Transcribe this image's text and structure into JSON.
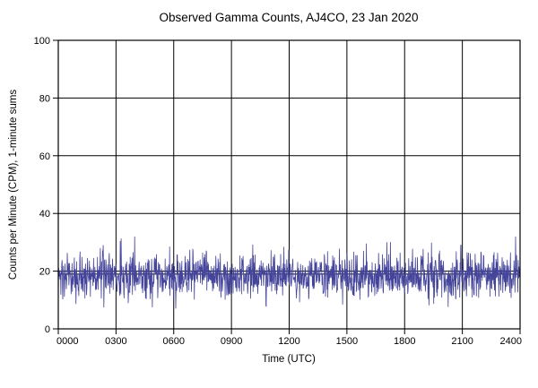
{
  "page": {
    "background": "#ffffff"
  },
  "chart_data": {
    "type": "line",
    "title": "Observed Gamma Counts, AJ4CO, 23 Jan 2020",
    "xlabel": "Time (UTC)",
    "ylabel": "Counts per Minute (CPM), 1-minute sums",
    "x_tick_labels": [
      "0000",
      "0300",
      "0600",
      "0900",
      "1200",
      "1500",
      "1800",
      "2100",
      "2400"
    ],
    "x_tick_minutes": [
      0,
      180,
      360,
      540,
      720,
      900,
      1080,
      1260,
      1440
    ],
    "xlim_minutes": [
      0,
      1440
    ],
    "y_ticks": [
      0,
      20,
      40,
      60,
      80,
      100
    ],
    "ylim": [
      0,
      100
    ],
    "grid": true,
    "grid_color": "#000000",
    "axis_color": "#000000",
    "background": "#ffffff",
    "mean_line": 19,
    "mean_line_color": "#000000",
    "series": [
      {
        "name": "gamma-counts-1min-sums",
        "points_per_day": 1440,
        "approx_mean": 18.3,
        "approx_std": 4.2,
        "observed_min": 5,
        "observed_max": 32,
        "seed": 20200123,
        "color": "#44449b"
      }
    ]
  }
}
